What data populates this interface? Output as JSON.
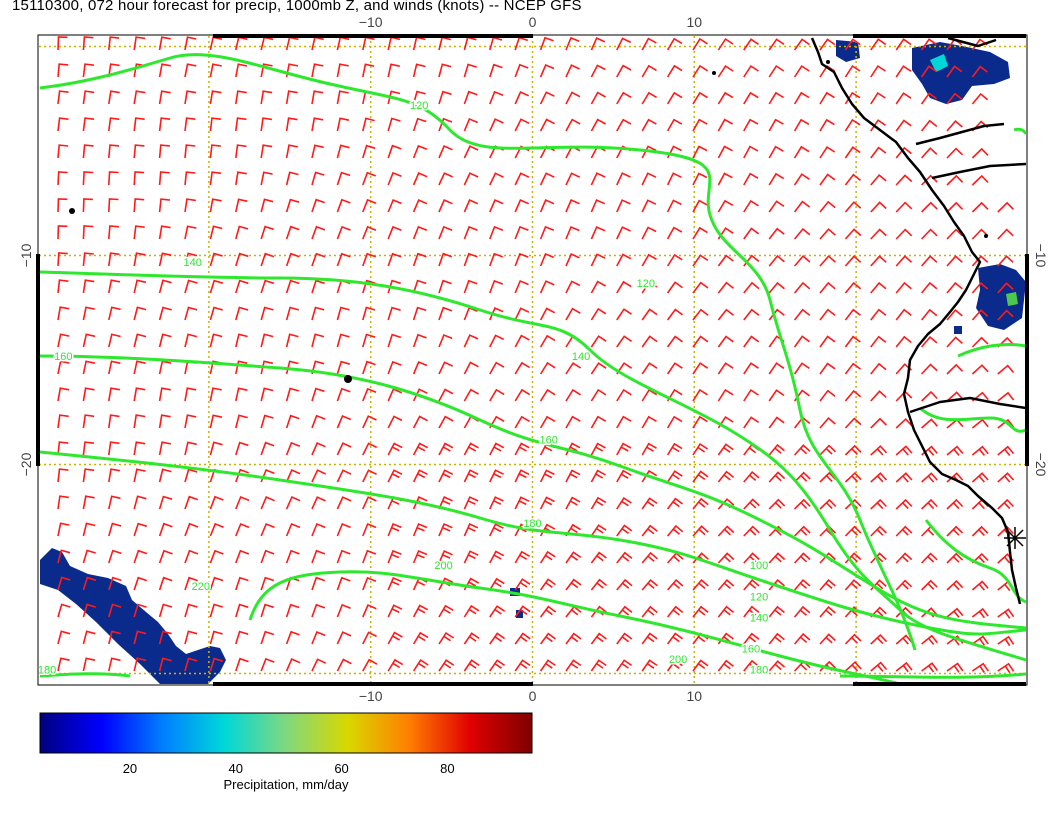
{
  "title": "15110300, 072 hour forecast for precip, 1000mb Z, and winds (knots) -- NCEP GFS",
  "colorbar": {
    "label": "Precipitation, mm/day",
    "ticks": [
      20,
      40,
      60,
      80
    ],
    "range": [
      3,
      96
    ],
    "colors": [
      "#00007f",
      "#0000ff",
      "#007fff",
      "#00d8d8",
      "#7fd87f",
      "#d8d800",
      "#ff7f00",
      "#e00000",
      "#7f0000"
    ]
  },
  "map": {
    "lon_range": [
      -30.5,
      30.5
    ],
    "lat_range": [
      -30.5,
      0.5
    ],
    "x_ticks": [
      {
        "value": -10,
        "label": "−10"
      },
      {
        "value": 0,
        "label": "0"
      },
      {
        "value": 10,
        "label": "10"
      }
    ],
    "y_ticks": [
      {
        "value": -10,
        "label": "−10"
      },
      {
        "value": -20,
        "label": "−20"
      }
    ],
    "grid": true,
    "colors": {
      "contour": "#2ee82e",
      "barb": "#ff1a1a",
      "grid": "#c8b400",
      "coast": "#000000",
      "precip": "#0a2b8c"
    }
  },
  "contours": [
    {
      "label": "120",
      "label_lon": -7,
      "label_lat": -3
    },
    {
      "label": "120",
      "label_lon": 7,
      "label_lat": -11.5
    },
    {
      "label": "140",
      "label_lon": -21,
      "label_lat": -10.5
    },
    {
      "label": "140",
      "label_lon": 3,
      "label_lat": -15
    },
    {
      "label": "160",
      "label_lon": -29,
      "label_lat": -15
    },
    {
      "label": "160",
      "label_lon": 1,
      "label_lat": -19
    },
    {
      "label": "180",
      "label_lon": 0,
      "label_lat": -23
    },
    {
      "label": "200",
      "label_lon": -5.5,
      "label_lat": -25
    },
    {
      "label": "200",
      "label_lon": 9,
      "label_lat": -29.5
    },
    {
      "label": "220",
      "label_lon": -20.5,
      "label_lat": -26
    },
    {
      "label": "100",
      "label_lon": 14,
      "label_lat": -25
    },
    {
      "label": "120",
      "label_lon": 14,
      "label_lat": -26.5
    },
    {
      "label": "140",
      "label_lon": 14,
      "label_lat": -27.5
    },
    {
      "label": "160",
      "label_lon": 13.5,
      "label_lat": -29
    },
    {
      "label": "180",
      "label_lon": -30,
      "label_lat": -30
    },
    {
      "label": "180",
      "label_lon": 14,
      "label_lat": -30
    }
  ]
}
